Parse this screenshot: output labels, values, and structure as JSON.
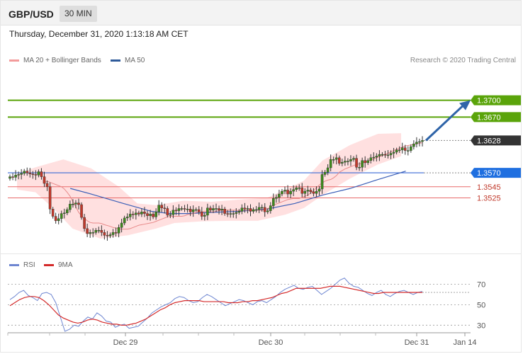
{
  "header": {
    "pair": "GBP/USD",
    "timeframe": "30 MIN"
  },
  "datetime": "Thursday, December 31, 2020 1:13:18 AM CET",
  "legend": {
    "ma20": "MA 20 + Bollinger Bands",
    "ma50": "MA 50",
    "rsi": "RSI",
    "ma9": "9MA"
  },
  "credit": "Research © 2020 Trading Central",
  "colors": {
    "resistance": "#5aa40a",
    "support": "#e86a6a",
    "current": "#333333",
    "ma50": "#3b5fb7",
    "ma20": "#e88a8a",
    "band": "#ffdada",
    "arrow": "#2f64a8",
    "rsi": "#6e86d1",
    "rsi_ma": "#d42a2a"
  },
  "chart_data": {
    "type": "line",
    "main": {
      "price_levels": [
        {
          "value": 1.37,
          "label": "1.3700",
          "kind": "resistance"
        },
        {
          "value": 1.367,
          "label": "1.3670",
          "kind": "resistance"
        },
        {
          "value": 1.3628,
          "label": "1.3628",
          "kind": "current"
        },
        {
          "value": 1.357,
          "label": "1.3570",
          "kind": "pivot"
        },
        {
          "value": 1.3545,
          "label": "1.3545",
          "kind": "support"
        },
        {
          "value": 1.3525,
          "label": "1.3525",
          "kind": "support"
        }
      ],
      "ylim": [
        1.3433,
        1.3758
      ],
      "projection": {
        "from": 1.3628,
        "to": 1.37
      },
      "close": [
        1.3563,
        1.3562,
        1.3566,
        1.3567,
        1.3569,
        1.3573,
        1.357,
        1.3568,
        1.3567,
        1.3566,
        1.3572,
        1.3563,
        1.3551,
        1.3545,
        1.3505,
        1.3492,
        1.3484,
        1.3488,
        1.3497,
        1.3498,
        1.3504,
        1.3514,
        1.3514,
        1.3516,
        1.3513,
        1.349,
        1.347,
        1.3461,
        1.3463,
        1.3463,
        1.3467,
        1.3467,
        1.3463,
        1.3458,
        1.3457,
        1.3459,
        1.3463,
        1.3462,
        1.3472,
        1.348,
        1.3489,
        1.3491,
        1.3496,
        1.3495,
        1.3498,
        1.3496,
        1.35,
        1.3497,
        1.3493,
        1.3496,
        1.3491,
        1.35,
        1.3512,
        1.3507,
        1.3506,
        1.3494,
        1.3495,
        1.3503,
        1.3502,
        1.3506,
        1.3506,
        1.3505,
        1.3505,
        1.35,
        1.3504,
        1.3504,
        1.35,
        1.3492,
        1.3494,
        1.3507,
        1.3503,
        1.3506,
        1.3506,
        1.3503,
        1.3505,
        1.3497,
        1.3496,
        1.3497,
        1.3497,
        1.3499,
        1.3501,
        1.3507,
        1.3505,
        1.3506,
        1.3501,
        1.3504,
        1.3504,
        1.3508,
        1.3508,
        1.35,
        1.3502,
        1.3511,
        1.3524,
        1.3526,
        1.3532,
        1.3537,
        1.3539,
        1.3532,
        1.3537,
        1.354,
        1.3543,
        1.3543,
        1.3533,
        1.3537,
        1.3539,
        1.3536,
        1.3533,
        1.3537,
        1.3541,
        1.3567,
        1.3571,
        1.3579,
        1.3594,
        1.3594,
        1.3597,
        1.3587,
        1.3589,
        1.3591,
        1.3591,
        1.3594,
        1.3596,
        1.358,
        1.358,
        1.3592,
        1.3588,
        1.3592,
        1.3597,
        1.3598,
        1.36,
        1.3603,
        1.3603,
        1.3602,
        1.3602,
        1.3605,
        1.3607,
        1.3611,
        1.3611,
        1.3615,
        1.361,
        1.361,
        1.3617,
        1.3622,
        1.3625,
        1.3626,
        1.3628
      ],
      "ma20": [
        1.3553,
        1.3555,
        1.3553,
        1.3551,
        1.3549,
        1.3547,
        1.3545,
        1.3541,
        1.3535,
        1.3528,
        1.3518,
        1.3509,
        1.3499,
        1.3493,
        1.3488,
        1.3484,
        1.3481,
        1.348,
        1.348,
        1.348,
        1.3479,
        1.3477,
        1.3474,
        1.3472,
        1.3471,
        1.347,
        1.3469,
        1.3469,
        1.3469,
        1.347,
        1.3472,
        1.3474,
        1.3476,
        1.3477,
        1.3478,
        1.3479,
        1.348,
        1.3481,
        1.3483,
        1.3485,
        1.3487,
        1.3489,
        1.3491,
        1.3492,
        1.3492,
        1.3492,
        1.3492,
        1.3492,
        1.3493,
        1.3495,
        1.3496,
        1.3497,
        1.3499,
        1.35,
        1.35,
        1.3501,
        1.3501,
        1.35,
        1.35,
        1.3501,
        1.3502,
        1.3503,
        1.3503,
        1.3503,
        1.3503,
        1.3503,
        1.3502,
        1.3503,
        1.3503,
        1.3503,
        1.3503,
        1.3503,
        1.3503,
        1.3503,
        1.3503,
        1.3504,
        1.3506,
        1.3508,
        1.3512,
        1.3514,
        1.3516,
        1.3518,
        1.352,
        1.3522,
        1.3523,
        1.3524,
        1.3524,
        1.3524,
        1.3526,
        1.3528,
        1.353,
        1.3534,
        1.3538,
        1.3543,
        1.3548,
        1.3552,
        1.3555,
        1.3557,
        1.3558,
        1.3561,
        1.3565,
        1.3571,
        1.3574,
        1.3577,
        1.3579,
        1.3581,
        1.3583,
        1.3585,
        1.3587,
        1.3589,
        1.3591,
        1.3593,
        1.3595,
        1.3597,
        1.3599,
        1.3601,
        1.3603,
        1.3605,
        1.3608,
        1.361,
        1.3612,
        1.3614,
        1.3616,
        1.3618,
        1.3619,
        1.362,
        1.3621,
        1.3622,
        1.3623,
        1.3624
      ],
      "ma50_points": [
        [
          0.135,
          1.3542
        ],
        [
          0.18,
          1.3532
        ],
        [
          0.25,
          1.3515
        ],
        [
          0.31,
          1.3501
        ],
        [
          0.35,
          1.3497
        ],
        [
          0.39,
          1.3497
        ],
        [
          0.44,
          1.3499
        ],
        [
          0.5,
          1.3501
        ],
        [
          0.56,
          1.3505
        ],
        [
          0.62,
          1.3515
        ],
        [
          0.68,
          1.353
        ],
        [
          0.74,
          1.3542
        ],
        [
          0.8,
          1.3558
        ],
        [
          0.86,
          1.3573
        ]
      ],
      "band_upper_points": [
        [
          0.02,
          1.3568
        ],
        [
          0.06,
          1.358
        ],
        [
          0.12,
          1.3594
        ],
        [
          0.18,
          1.3578
        ],
        [
          0.24,
          1.3545
        ],
        [
          0.28,
          1.3515
        ],
        [
          0.32,
          1.3512
        ],
        [
          0.38,
          1.352
        ],
        [
          0.44,
          1.3518
        ],
        [
          0.5,
          1.3522
        ],
        [
          0.56,
          1.3525
        ],
        [
          0.6,
          1.354
        ],
        [
          0.64,
          1.3556
        ],
        [
          0.68,
          1.3592
        ],
        [
          0.74,
          1.362
        ],
        [
          0.8,
          1.364
        ],
        [
          0.85,
          1.3641
        ]
      ],
      "band_lower_points": [
        [
          0.02,
          1.354
        ],
        [
          0.06,
          1.3535
        ],
        [
          0.1,
          1.3505
        ],
        [
          0.14,
          1.347
        ],
        [
          0.2,
          1.3452
        ],
        [
          0.26,
          1.3458
        ],
        [
          0.32,
          1.347
        ],
        [
          0.36,
          1.348
        ],
        [
          0.42,
          1.3483
        ],
        [
          0.48,
          1.3484
        ],
        [
          0.54,
          1.3484
        ],
        [
          0.6,
          1.3495
        ],
        [
          0.64,
          1.3507
        ],
        [
          0.68,
          1.353
        ],
        [
          0.74,
          1.356
        ],
        [
          0.8,
          1.3585
        ],
        [
          0.85,
          1.36
        ]
      ]
    },
    "rsi": {
      "ylim": [
        24,
        80
      ],
      "ticks": [
        70,
        50,
        30
      ],
      "reference": 62,
      "rsi": [
        55,
        58,
        62,
        64,
        59,
        57,
        54,
        61,
        62,
        60,
        52,
        38,
        24,
        26,
        30,
        29,
        34,
        38,
        36,
        42,
        39,
        34,
        33,
        28,
        30,
        31,
        27,
        28,
        29,
        33,
        37,
        42,
        45,
        48,
        50,
        52,
        56,
        58,
        57,
        54,
        52,
        53,
        57,
        60,
        58,
        55,
        52,
        49,
        51,
        53,
        55,
        54,
        52,
        50,
        53,
        54,
        52,
        55,
        58,
        62,
        65,
        67,
        69,
        66,
        65,
        67,
        68,
        64,
        60,
        63,
        66,
        70,
        74,
        76,
        71,
        68,
        67,
        64,
        61,
        59,
        62,
        64,
        60,
        58,
        61,
        63,
        64,
        62,
        60,
        62,
        63
      ],
      "ma9": [
        49,
        52,
        55,
        57,
        58,
        58,
        57,
        54,
        50,
        45,
        40,
        37,
        35,
        33,
        32,
        33,
        35,
        36,
        35,
        33,
        32,
        31,
        31,
        30,
        30,
        31,
        32,
        34,
        36,
        39,
        42,
        45,
        47,
        50,
        52,
        53,
        54,
        54,
        54,
        54,
        53,
        53,
        53,
        53,
        53,
        52,
        52,
        52,
        53,
        53,
        54,
        54,
        55,
        56,
        57,
        59,
        61,
        62,
        64,
        66,
        66,
        66,
        66,
        66,
        66,
        67,
        68,
        68,
        68,
        67,
        66,
        65,
        64,
        63,
        62,
        61,
        61,
        62,
        62,
        62,
        62,
        62,
        62,
        62,
        62,
        62
      ]
    },
    "x_ticks": [
      "Dec 29",
      "Dec 30",
      "Dec 31",
      "Jan 14"
    ]
  }
}
